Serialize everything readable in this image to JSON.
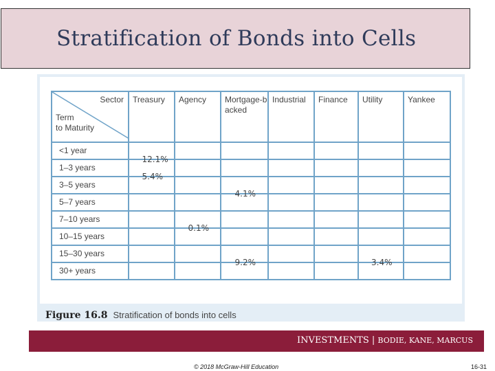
{
  "slide": {
    "title": "Stratification of Bonds into Cells",
    "banner": {
      "main": "INVESTMENTS | ",
      "authors": "BODIE, KANE, MARCUS"
    },
    "copyright": "© 2018 McGraw-Hill Education",
    "slide_number": "16-31"
  },
  "figure": {
    "label": "Figure 16.8",
    "caption": "Stratification of bonds into cells"
  },
  "table": {
    "corner": {
      "sector": "Sector",
      "term_line1": "Term",
      "term_line2": "to Maturity"
    },
    "columns": [
      "Treasury",
      "Agency",
      "Mortgage-backed",
      "Industrial",
      "Finance",
      "Utility",
      "Yankee"
    ],
    "rows": [
      "<1 year",
      "1–3 years",
      "3–5 years",
      "5–7 years",
      "7–10 years",
      "10–15 years",
      "15–30 years",
      "30+ years"
    ],
    "values": [
      {
        "label": "12.1%",
        "row": "<1 year",
        "column": "Treasury"
      },
      {
        "label": "5.4%",
        "row": "1–3 years",
        "column": "Treasury"
      },
      {
        "label": "4.1%",
        "row": "3–5 years",
        "column": "Mortgage-backed"
      },
      {
        "label": "0.1%",
        "row": "7–10 years",
        "column": "Agency"
      },
      {
        "label": "9.2%",
        "row": "15–30 years",
        "column": "Mortgage-backed"
      },
      {
        "label": "3.4%",
        "row": "15–30 years",
        "column": "Utility"
      }
    ]
  }
}
